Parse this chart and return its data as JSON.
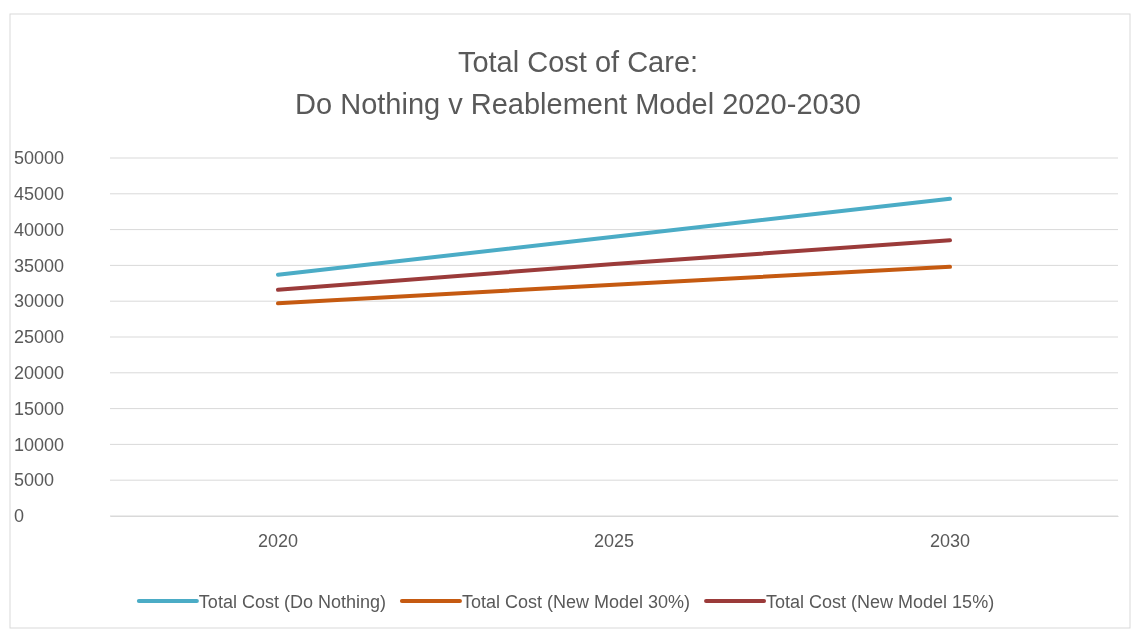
{
  "chart_data": {
    "type": "line",
    "title": "Total Cost of Care:",
    "subtitle": "Do Nothing v Reablement Model 2020-2030",
    "categories": [
      "2020",
      "2025",
      "2030"
    ],
    "series": [
      {
        "name": "Total Cost (Do Nothing)",
        "color": "#4bacc6",
        "values": [
          33700,
          39000,
          44300
        ]
      },
      {
        "name": "Total Cost (New Model 30%)",
        "color": "#c55a11",
        "values": [
          29700,
          32300,
          34800
        ]
      },
      {
        "name": "Total Cost (New Model 15%)",
        "color": "#9b3b3a",
        "values": [
          31600,
          35200,
          38500
        ]
      }
    ],
    "ylim": [
      0,
      50000
    ],
    "yticks": [
      0,
      5000,
      10000,
      15000,
      20000,
      25000,
      30000,
      35000,
      40000,
      45000,
      50000
    ],
    "grid": "y",
    "legend": "bottom",
    "marker": "none",
    "line_style": "solid"
  }
}
